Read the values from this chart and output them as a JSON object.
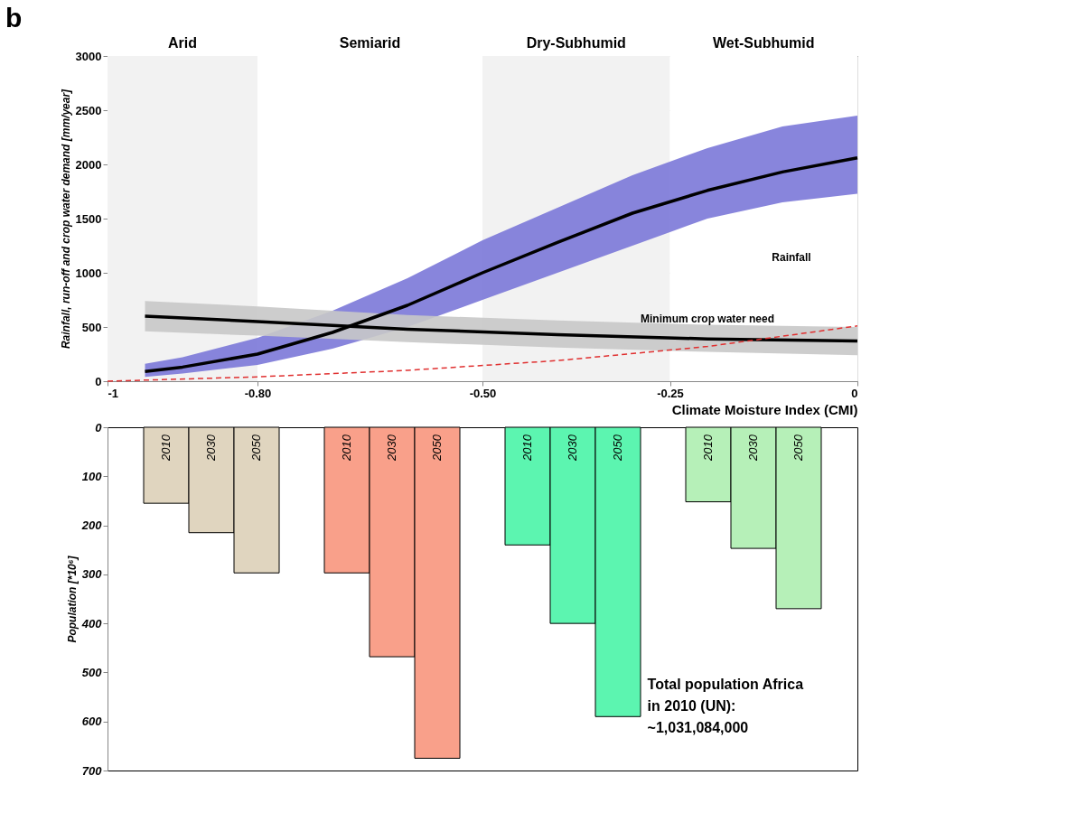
{
  "chart_data": [
    {
      "type": "line",
      "title": "b",
      "xlabel": "Climate Moisture Index (CMI)",
      "ylabel": "Rainfall, run-off and crop water demand [mm/year]",
      "xlim": [
        -1,
        0
      ],
      "xticks": [
        -1,
        {
          "value": -0.8,
          "label": "-0.80"
        },
        {
          "value": -0.5,
          "label": "-0.50"
        },
        {
          "value": -0.25,
          "label": "-0.25"
        },
        0
      ],
      "ylim": [
        0,
        3000
      ],
      "yticks": [
        0,
        500,
        1000,
        1500,
        2000,
        2500,
        3000
      ],
      "grid": true,
      "bands": [
        {
          "axis": "x",
          "from": -1,
          "to": -0.8,
          "label": "Arid",
          "color": "#f2f2f2"
        },
        {
          "axis": "x",
          "from": -0.8,
          "to": -0.5,
          "label": "Semiarid",
          "color": "#ffffff"
        },
        {
          "axis": "x",
          "from": -0.5,
          "to": -0.25,
          "label": "Dry-Subhumid",
          "color": "#f2f2f2"
        },
        {
          "axis": "x",
          "from": -0.25,
          "to": 0,
          "label": "Wet-Subhumid",
          "color": "#ffffff"
        }
      ],
      "series": [
        {
          "type": "line",
          "color": "#000000",
          "colors": [
            "#7b78d8",
            "#7b78d8",
            "#7b78d8",
            "#7b78d8",
            "#7b78d8",
            "#7b78d8",
            "#7b78d8",
            "#7b78d8",
            "#7b78d8",
            "#7b78d8",
            "#7b78d8"
          ],
          "line_style": "solid",
          "x": [
            -0.95,
            -0.9,
            -0.8,
            -0.7,
            -0.6,
            -0.5,
            -0.4,
            -0.3,
            -0.2,
            -0.1,
            0
          ],
          "values": [
            90,
            130,
            250,
            450,
            700,
            1000,
            1280,
            1550,
            1760,
            1930,
            2060
          ],
          "lower": [
            40,
            70,
            150,
            300,
            500,
            750,
            1000,
            1250,
            1500,
            1650,
            1730
          ],
          "upper": [
            160,
            220,
            400,
            650,
            950,
            1300,
            1600,
            1900,
            2150,
            2350,
            2450
          ]
        },
        {
          "type": "line",
          "color": "#000000",
          "colors": [
            "#c8c8c8",
            "#c8c8c8",
            "#c8c8c8",
            "#c8c8c8",
            "#c8c8c8",
            "#c8c8c8"
          ],
          "line_style": "solid",
          "x": [
            -0.95,
            -0.8,
            -0.6,
            -0.4,
            -0.2,
            0
          ],
          "values": [
            600,
            550,
            480,
            430,
            390,
            370
          ],
          "lower": [
            460,
            420,
            360,
            310,
            270,
            240
          ],
          "upper": [
            740,
            690,
            610,
            560,
            520,
            500
          ]
        },
        {
          "type": "line",
          "color": "#e03030",
          "line_style": "dashed",
          "x": [
            -1,
            -0.8,
            -0.6,
            -0.4,
            -0.2,
            0
          ],
          "values": [
            0,
            40,
            100,
            190,
            320,
            510
          ]
        }
      ],
      "annotations": [
        "Rainfall",
        "Minimum crop water need"
      ]
    },
    {
      "type": "bar",
      "ylabel": "Population  [*10⁶]",
      "ylim": [
        700,
        0
      ],
      "yticks": [
        0,
        100,
        200,
        300,
        400,
        500,
        600,
        700
      ],
      "categories": [
        "2010",
        "2030",
        "2050",
        null,
        "2010",
        "2030",
        "2050",
        null,
        "2010",
        "2030",
        "2050",
        null,
        "2010",
        "2030",
        "2050"
      ],
      "values": [
        155,
        215,
        297,
        null,
        297,
        468,
        675,
        null,
        240,
        400,
        590,
        null,
        152,
        247,
        370
      ],
      "colors": [
        "#e0d5bf",
        "#e0d5bf",
        "#e0d5bf",
        null,
        "#f9a08a",
        "#f9a08a",
        "#f9a08a",
        null,
        "#5cf5b0",
        "#5cf5b0",
        "#5cf5b0",
        null,
        "#b6f0b8",
        "#b6f0b8",
        "#b6f0b8"
      ],
      "annotations": [
        "Total population Africa in 2010 (UN): ~1,031,084,000"
      ]
    }
  ]
}
